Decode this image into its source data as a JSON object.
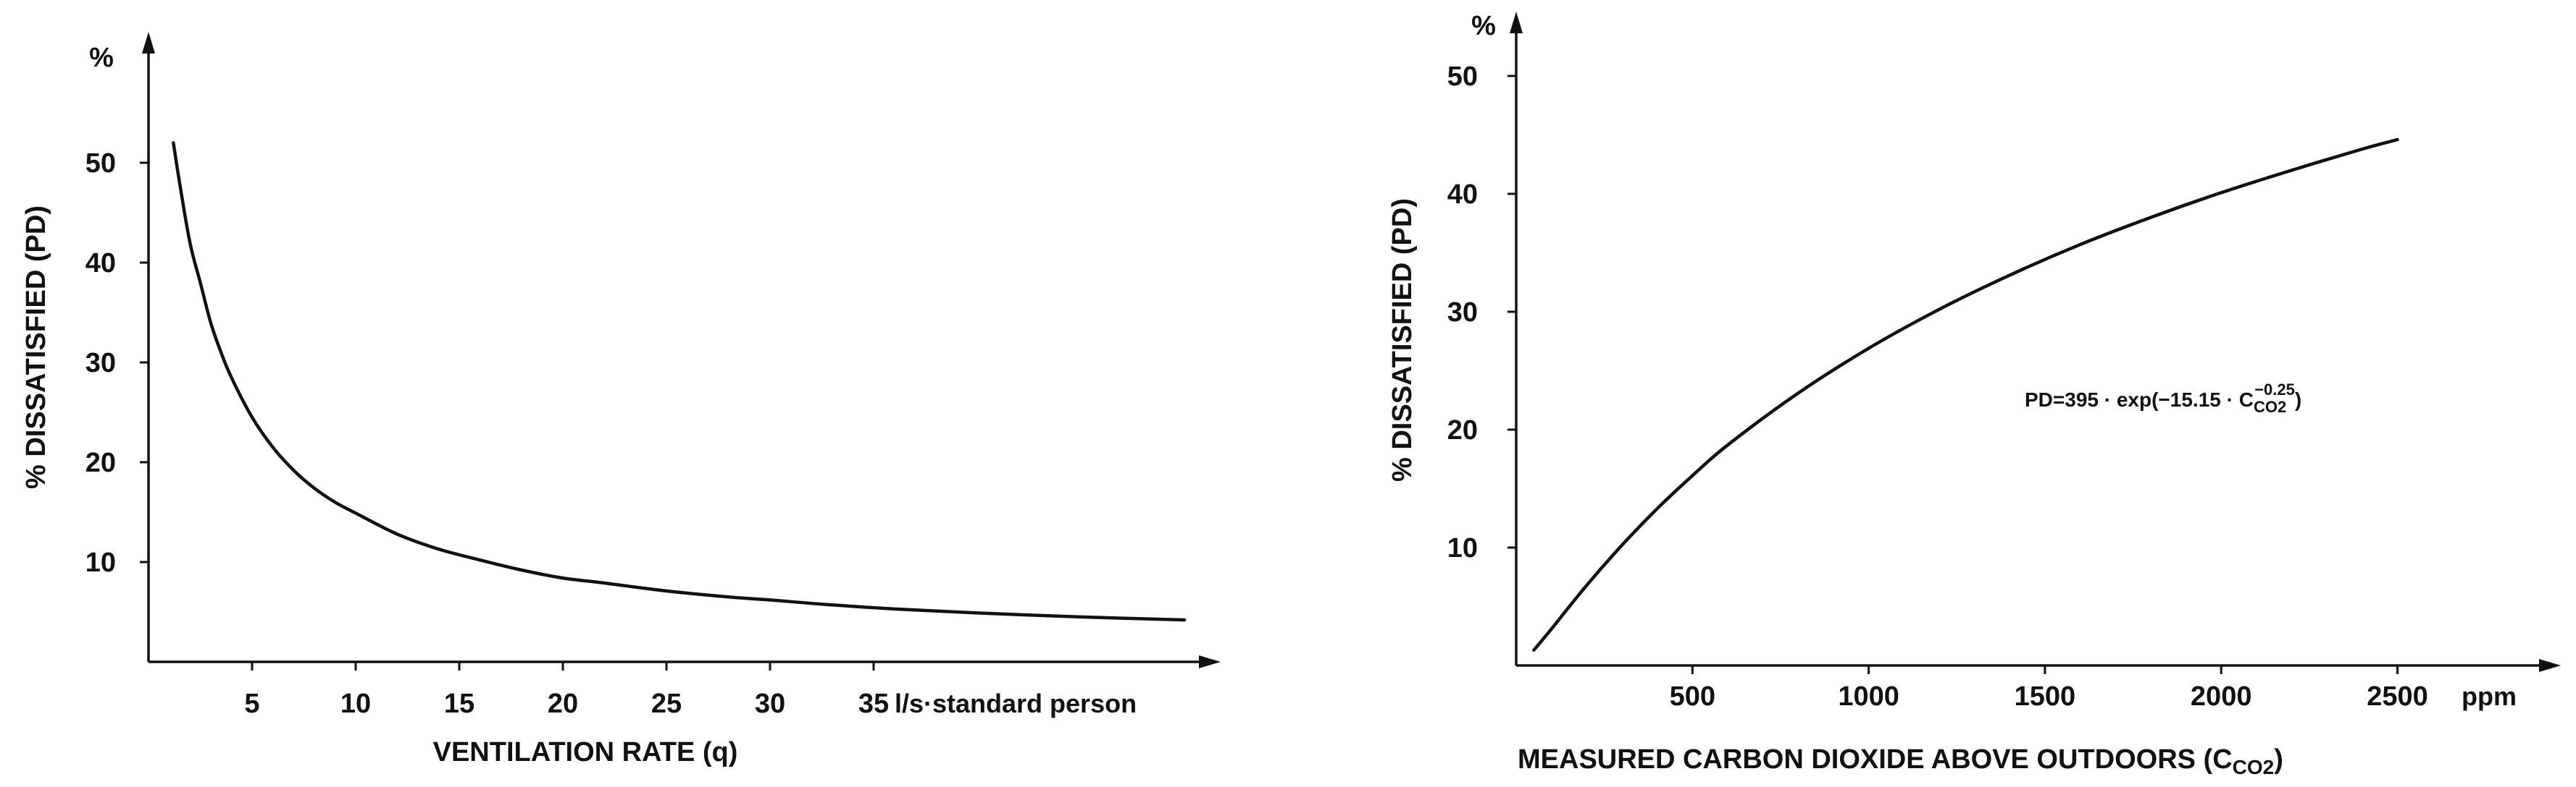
{
  "chart_data": [
    {
      "type": "line",
      "title": "",
      "xlabel": "VENTILATION RATE (q)",
      "ylabel": "% DISSATISFIED (PD)",
      "y_unit": "%",
      "x_unit": "l/s·standard person",
      "xlim": [
        0,
        52
      ],
      "ylim": [
        0,
        60
      ],
      "x_ticks": [
        5,
        10,
        15,
        20,
        25,
        30,
        35
      ],
      "y_ticks": [
        10,
        20,
        30,
        40,
        50
      ],
      "grid": false,
      "series": [
        {
          "x": [
            1.2,
            1.5,
            2,
            2.5,
            3,
            3.5,
            4,
            5,
            6,
            7,
            8,
            9,
            10,
            12,
            14,
            16,
            18,
            20,
            22,
            25,
            28,
            30,
            33,
            36,
            40,
            45,
            50
          ],
          "y": [
            52,
            48,
            42,
            38,
            34,
            31,
            28.5,
            24.5,
            21.5,
            19.2,
            17.4,
            16,
            14.9,
            12.8,
            11.3,
            10.2,
            9.2,
            8.4,
            7.9,
            7.1,
            6.5,
            6.2,
            5.7,
            5.3,
            4.9,
            4.5,
            4.2
          ]
        }
      ]
    },
    {
      "type": "line",
      "title": "",
      "xlabel": "MEASURED CARBON DIOXIDE ABOVE  OUTDOORS (C",
      "xlabel_sub": "CO2",
      "xlabel_end": ")",
      "ylabel": "% DISSATISFIED (PD)",
      "y_unit": "%",
      "x_unit": "ppm",
      "xlim": [
        0,
        2900
      ],
      "ylim": [
        0,
        55
      ],
      "x_ticks": [
        500,
        1000,
        1500,
        2000,
        2500
      ],
      "y_ticks": [
        10,
        20,
        30,
        40,
        50
      ],
      "grid": false,
      "annotation": {
        "main": "PD=395 · exp(−15.15 · C",
        "sub": "CO2",
        "sup": "−0.25",
        "end": ")"
      },
      "series": [
        {
          "x": [
            50,
            100,
            200,
            300,
            400,
            500,
            600,
            800,
            1000,
            1200,
            1400,
            1600,
            1800,
            2000,
            2200,
            2400,
            2500
          ],
          "y": [
            1.3,
            3.1,
            6.8,
            10.2,
            13.3,
            16.1,
            18.7,
            23.1,
            26.9,
            30.2,
            33.1,
            35.7,
            38.0,
            40.1,
            42.0,
            43.8,
            44.6
          ]
        }
      ]
    }
  ]
}
